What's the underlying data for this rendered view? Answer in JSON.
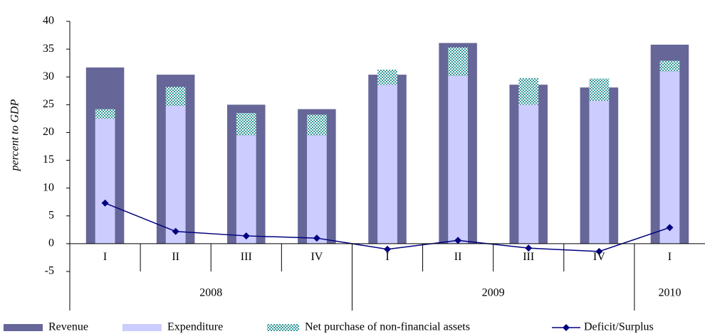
{
  "chart_data": {
    "type": "bar",
    "y_label": "percent to GDP",
    "categories": [
      "I",
      "II",
      "III",
      "IV",
      "I",
      "II",
      "III",
      "IV",
      "I"
    ],
    "groups": [
      "2008",
      "2009",
      "2010"
    ],
    "ylim": [
      -5,
      40
    ],
    "yticks": [
      -5,
      0,
      5,
      10,
      15,
      20,
      25,
      30,
      35,
      40
    ],
    "grid": false,
    "legend": "bottom",
    "series": [
      {
        "name": "Revenue",
        "type": "bar",
        "color": "#666699",
        "values": [
          31.7,
          30.4,
          25.0,
          24.2,
          30.4,
          36.1,
          28.6,
          28.1,
          35.8
        ]
      },
      {
        "name": "Expenditure",
        "type": "inner",
        "color": "#ccccff",
        "values": [
          22.5,
          24.8,
          19.5,
          19.5,
          28.6,
          30.2,
          25.0,
          25.7,
          31.0
        ]
      },
      {
        "name": "Net purchase of non-financial assets",
        "type": "stacked",
        "color": "#339999",
        "values": [
          1.7,
          3.4,
          4.0,
          3.7,
          2.7,
          5.1,
          4.8,
          4.0,
          1.9
        ]
      },
      {
        "name": "Deficit/Surplus",
        "type": "line",
        "color": "#000080",
        "values": [
          7.3,
          2.2,
          1.4,
          1.0,
          -1.0,
          0.6,
          -0.8,
          -1.4,
          2.9
        ]
      }
    ]
  }
}
